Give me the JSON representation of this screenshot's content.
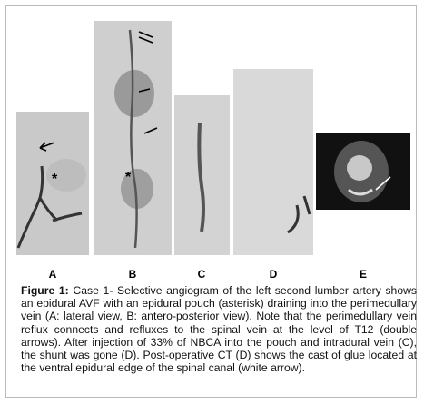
{
  "figure": {
    "panels": [
      {
        "label": "A",
        "marker": "*"
      },
      {
        "label": "B",
        "marker": "*"
      },
      {
        "label": "C"
      },
      {
        "label": "D"
      },
      {
        "label": "E"
      }
    ],
    "caption_label": "Figure 1:",
    "caption_text": "Case 1- Selective angiogram of the left second lumber artery shows an epidural AVF with an epidural pouch (asterisk) draining into the perimedullary vein (A: lateral view, B: antero-posterior view). Note that the perimedullary vein reflux connects and refluxes to the spinal vein at the level of T12 (double arrows). After injection of 33% of NBCA into the pouch and intradural vein (C), the shunt was gone (D). Post-operative CT (D) shows the cast of glue located at the ventral epidural edge of the spinal canal (white arrow)."
  }
}
